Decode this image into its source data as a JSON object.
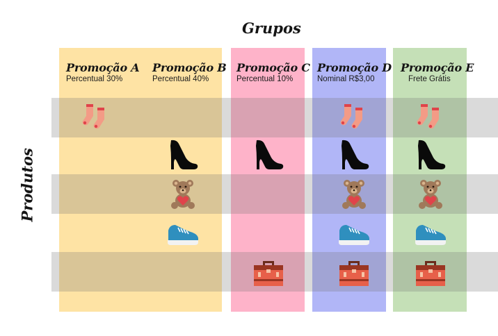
{
  "header": {
    "groups_label": "Grupos",
    "products_label": "Produtos"
  },
  "colors": {
    "group_yellow": "#fee3a4",
    "group_pink": "#feb3c9",
    "group_blue": "#b1b6f7",
    "group_green": "#c5e0b7",
    "row_band": "#808080"
  },
  "promotions": [
    {
      "name": "Promoção A",
      "rule": "Percentual 30%"
    },
    {
      "name": "Promoção B",
      "rule": "Percentual 40%"
    },
    {
      "name": "Promoção C",
      "rule": "Percentual 10%"
    },
    {
      "name": "Promoção D",
      "rule": "Nominal R$3,00"
    },
    {
      "name": "Promoção E",
      "rule": "Frete Grátis"
    }
  ],
  "products": [
    "socks-icon",
    "high-heel-icon",
    "teddy-bear-icon",
    "sneaker-icon",
    "toolbox-icon"
  ],
  "matrix": {
    "Promoção A": [
      "socks-icon"
    ],
    "Promoção B": [
      "high-heel-icon",
      "teddy-bear-icon",
      "sneaker-icon"
    ],
    "Promoção C": [
      "high-heel-icon",
      "toolbox-icon"
    ],
    "Promoção D": [
      "socks-icon",
      "high-heel-icon",
      "teddy-bear-icon",
      "sneaker-icon",
      "toolbox-icon"
    ],
    "Promoção E": [
      "socks-icon",
      "high-heel-icon",
      "teddy-bear-icon",
      "sneaker-icon",
      "toolbox-icon"
    ]
  }
}
